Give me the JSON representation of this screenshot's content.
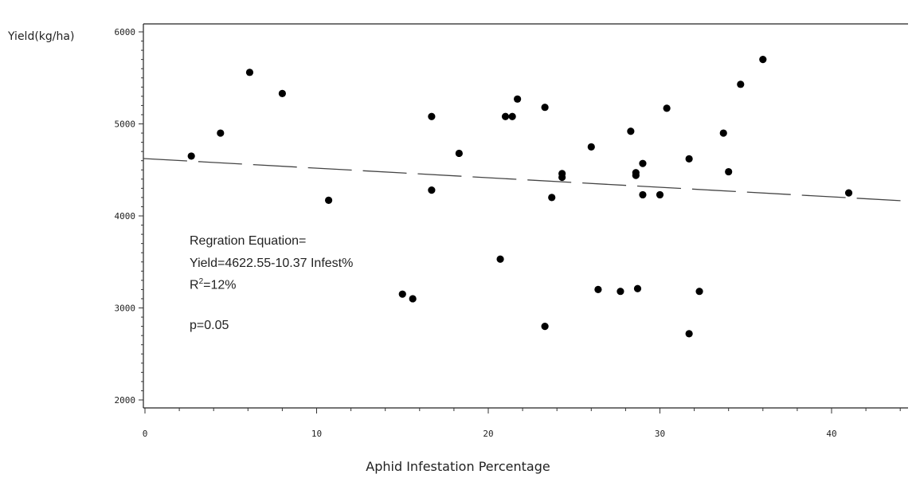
{
  "chart_data": {
    "type": "scatter",
    "ylabel": "Yield(kg/ha)",
    "xlabel": "Aphid Infestation Percentage",
    "xlim": [
      0,
      45
    ],
    "ylim": [
      1900,
      6100
    ],
    "x_ticks": [
      0,
      10,
      20,
      30,
      40
    ],
    "y_ticks": [
      2000,
      3000,
      4000,
      5000,
      6000
    ],
    "grid": false,
    "trendline": {
      "intercept": 4622.55,
      "slope": -10.37,
      "style": "dashed"
    },
    "annotation": {
      "line1": "Regration Equation=",
      "line2": "Yield=4622.55-10.37 Infest%",
      "line3_prefix": "R",
      "line3_sup": "2",
      "line3_suffix": "=12%",
      "line4": "p=0.05"
    },
    "points": [
      {
        "x": 2.7,
        "y": 4650
      },
      {
        "x": 4.4,
        "y": 4900
      },
      {
        "x": 6.1,
        "y": 5560
      },
      {
        "x": 8.0,
        "y": 5330
      },
      {
        "x": 10.7,
        "y": 4170
      },
      {
        "x": 15.0,
        "y": 3150
      },
      {
        "x": 15.6,
        "y": 3100
      },
      {
        "x": 16.7,
        "y": 5080
      },
      {
        "x": 16.7,
        "y": 4280
      },
      {
        "x": 18.3,
        "y": 4680
      },
      {
        "x": 20.7,
        "y": 3530
      },
      {
        "x": 21.0,
        "y": 5080
      },
      {
        "x": 21.4,
        "y": 5080
      },
      {
        "x": 21.7,
        "y": 5270
      },
      {
        "x": 23.3,
        "y": 5180
      },
      {
        "x": 23.3,
        "y": 2800
      },
      {
        "x": 23.7,
        "y": 4200
      },
      {
        "x": 24.3,
        "y": 4460
      },
      {
        "x": 24.3,
        "y": 4420
      },
      {
        "x": 26.0,
        "y": 4750
      },
      {
        "x": 26.4,
        "y": 3200
      },
      {
        "x": 27.7,
        "y": 3180
      },
      {
        "x": 28.3,
        "y": 4920
      },
      {
        "x": 28.6,
        "y": 4470
      },
      {
        "x": 28.6,
        "y": 4440
      },
      {
        "x": 28.7,
        "y": 3210
      },
      {
        "x": 29.0,
        "y": 4570
      },
      {
        "x": 29.0,
        "y": 4230
      },
      {
        "x": 30.0,
        "y": 4230
      },
      {
        "x": 30.4,
        "y": 5170
      },
      {
        "x": 31.7,
        "y": 4620
      },
      {
        "x": 31.7,
        "y": 2720
      },
      {
        "x": 32.3,
        "y": 3180
      },
      {
        "x": 33.7,
        "y": 4900
      },
      {
        "x": 34.0,
        "y": 4480
      },
      {
        "x": 34.7,
        "y": 5430
      },
      {
        "x": 36.0,
        "y": 5700
      },
      {
        "x": 41.0,
        "y": 4250
      }
    ]
  }
}
